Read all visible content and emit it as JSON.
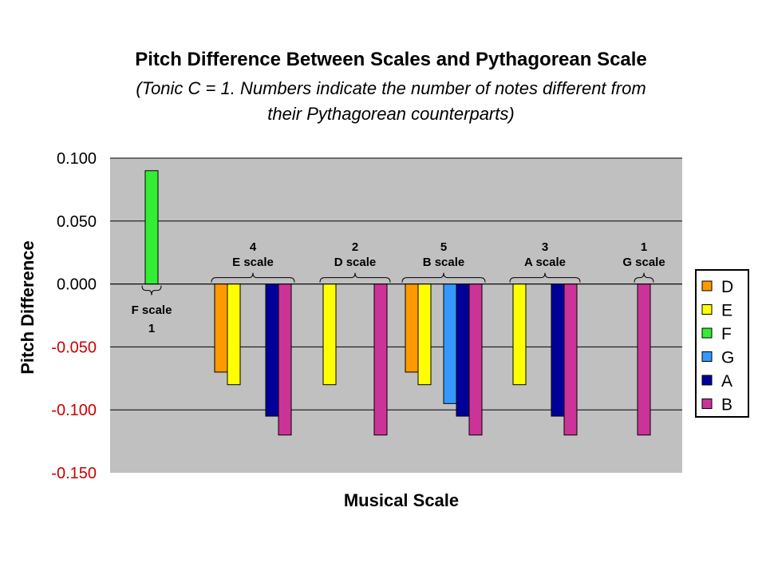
{
  "chart_data": {
    "type": "bar",
    "title": "Pitch Difference Between Scales and Pythagorean Scale",
    "subtitle_line1": "(Tonic C = 1. Numbers indicate the number of notes different from",
    "subtitle_line2": "their Pythagorean counterparts)",
    "xlabel": "Musical Scale",
    "ylabel": "Pitch Difference",
    "ylim": [
      -0.15,
      0.1
    ],
    "yticks": [
      "0.100",
      "0.050",
      "0.000",
      "-0.050",
      "-0.100",
      "-0.150"
    ],
    "negative_tick_color": "#cc0000",
    "plot_background": "#c0c0c0",
    "legend_position": "right",
    "series": [
      {
        "name": "D",
        "color": "#ff9900"
      },
      {
        "name": "E",
        "color": "#ffff00"
      },
      {
        "name": "F",
        "color": "#33ee33"
      },
      {
        "name": "G",
        "color": "#3399ff"
      },
      {
        "name": "A",
        "color": "#000099"
      },
      {
        "name": "B",
        "color": "#cc3399"
      }
    ],
    "groups": [
      {
        "count": "1",
        "label": "F scale",
        "label_below": true,
        "values": {
          "F": 0.09
        }
      },
      {
        "count": "4",
        "label": "E scale",
        "label_below": false,
        "values": {
          "D": -0.07,
          "E": -0.08,
          "A": -0.105,
          "B": -0.12
        }
      },
      {
        "count": "2",
        "label": "D scale",
        "label_below": false,
        "values": {
          "E": -0.08,
          "B": -0.12
        }
      },
      {
        "count": "5",
        "label": "B scale",
        "label_below": false,
        "values": {
          "D": -0.07,
          "E": -0.08,
          "G": -0.095,
          "A": -0.105,
          "B": -0.12
        }
      },
      {
        "count": "3",
        "label": "A scale",
        "label_below": false,
        "values": {
          "E": -0.08,
          "A": -0.105,
          "B": -0.12
        }
      },
      {
        "count": "1",
        "label": "G scale",
        "label_below": false,
        "values": {
          "B": -0.12
        }
      }
    ]
  }
}
